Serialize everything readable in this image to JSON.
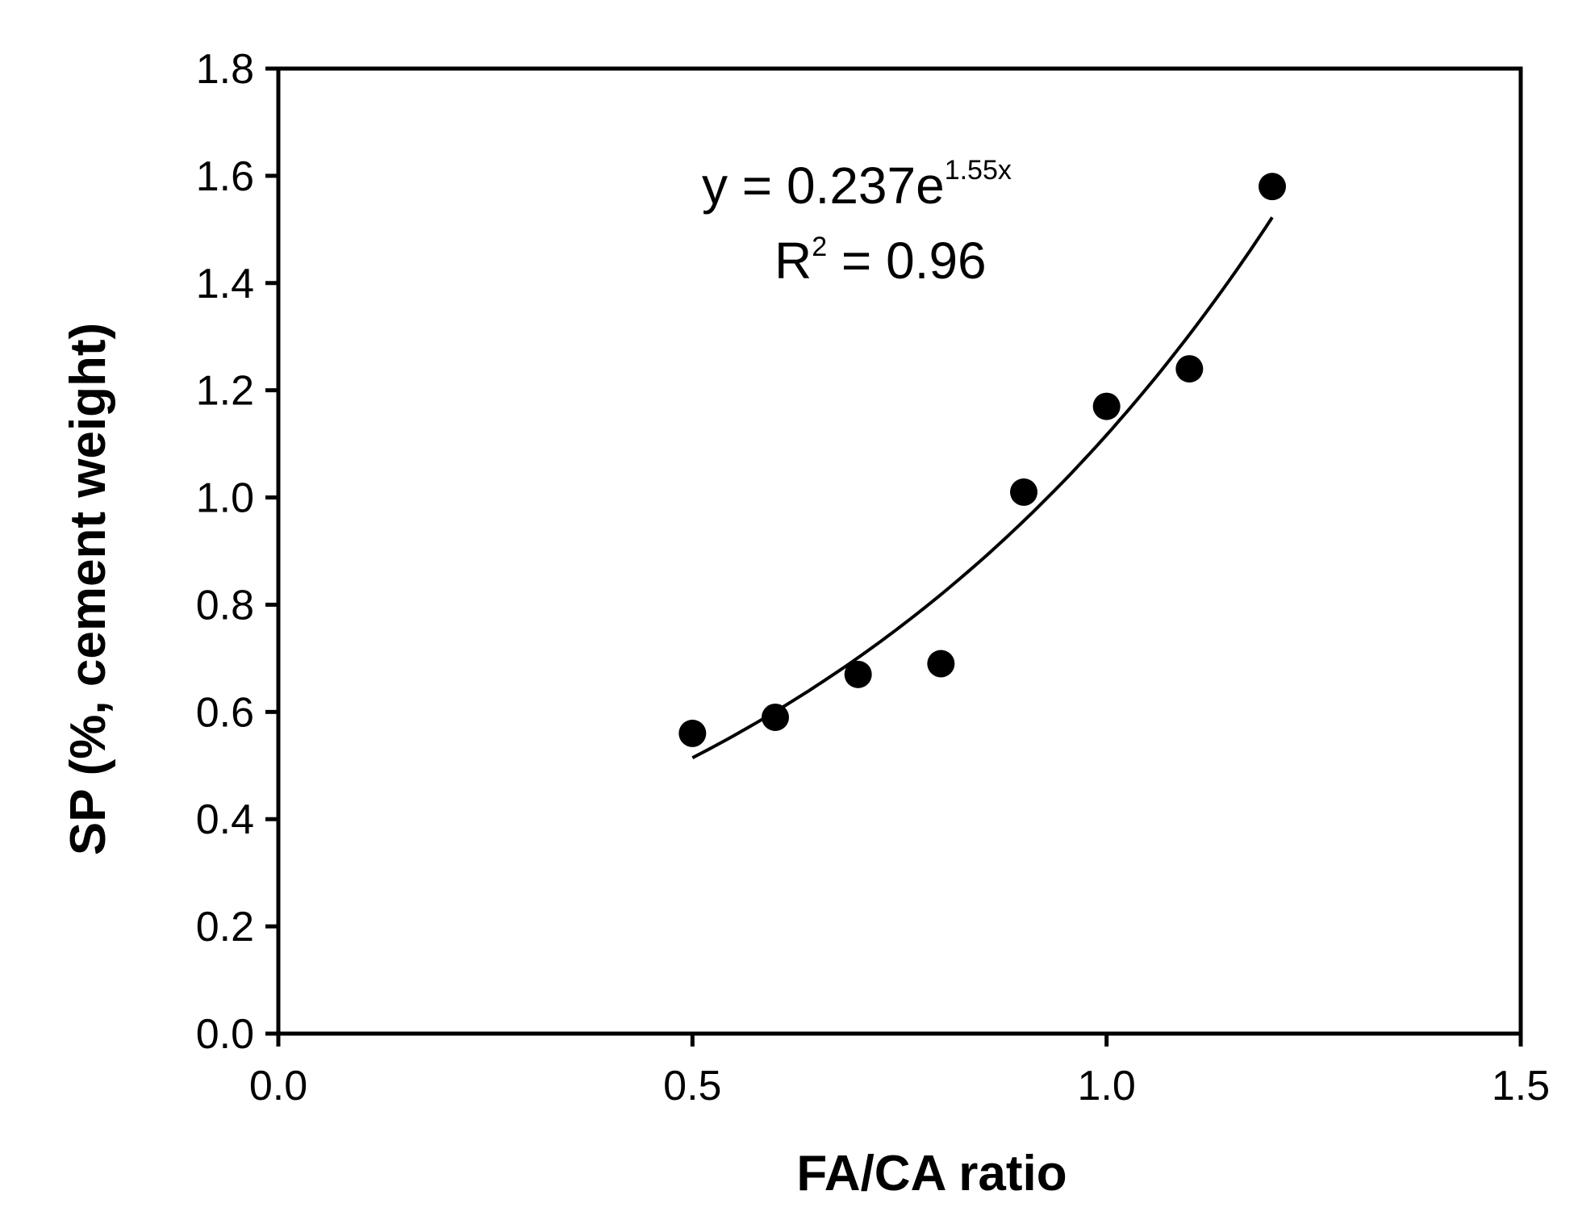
{
  "chart_data": {
    "type": "scatter",
    "xlabel": "FA/CA ratio",
    "ylabel": "SP (%,  cement weight)",
    "xlim": [
      0,
      1.5
    ],
    "ylim": [
      0,
      1.8
    ],
    "x_ticks": [
      "0.0",
      "0.5",
      "1.0",
      "1.5"
    ],
    "y_ticks": [
      "0.0",
      "0.2",
      "0.4",
      "0.6",
      "0.8",
      "1.0",
      "1.2",
      "1.4",
      "1.6",
      "1.8"
    ],
    "grid": false,
    "series": [
      {
        "x": [
          0.5,
          0.6,
          0.7,
          0.8,
          0.9,
          1.0,
          1.1,
          1.2
        ],
        "y": [
          0.56,
          0.59,
          0.67,
          0.69,
          1.01,
          1.17,
          1.24,
          1.58
        ]
      }
    ],
    "trendline": {
      "type": "exponential",
      "a": 0.237,
      "b": 1.55,
      "x_range": [
        0.5,
        1.2
      ]
    },
    "annotations": {
      "equation_base": "y = 0.237e",
      "equation_exp": "1.55x",
      "r2_base": "R",
      "r2_sup": "2",
      "r2_value": " = 0.96"
    }
  }
}
